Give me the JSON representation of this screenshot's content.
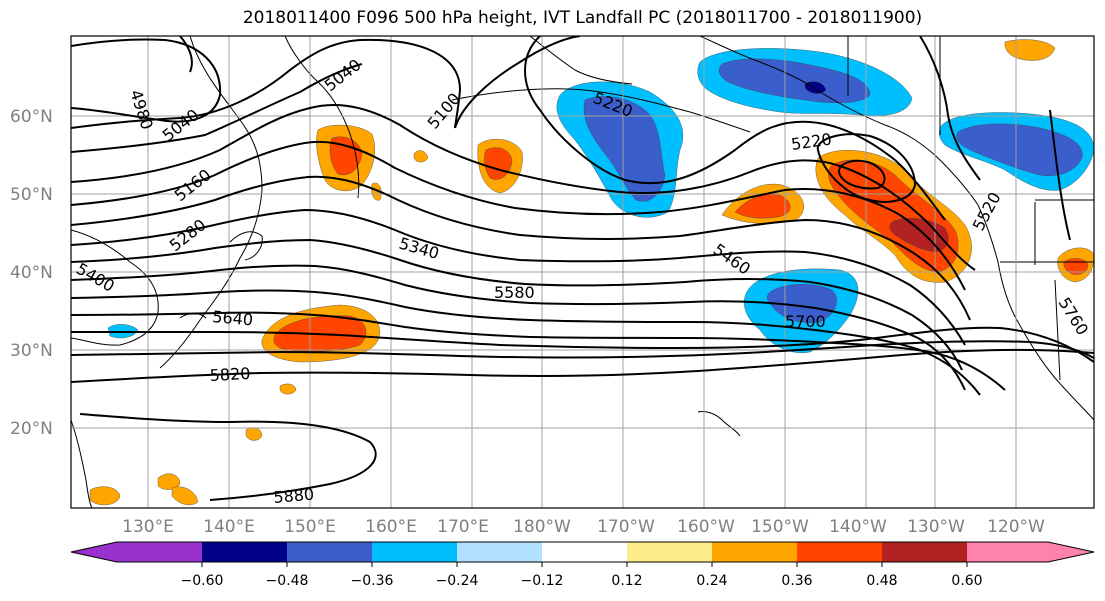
{
  "title": "2018011400 F096 500 hPa height, IVT Landfall PC (2018011700 - 2018011900)",
  "latitude_labels": [
    "60°N",
    "50°N",
    "40°N",
    "30°N",
    "20°N"
  ],
  "longitude_labels": [
    "130°E",
    "140°E",
    "150°E",
    "160°E",
    "170°E",
    "180°W",
    "170°W",
    "160°W",
    "150°W",
    "140°W",
    "130°W",
    "120°W"
  ],
  "contour_labels": [
    "4980",
    "5040",
    "5040",
    "5100",
    "5160",
    "5220",
    "5220",
    "5280",
    "5340",
    "5400",
    "5460",
    "5520",
    "5580",
    "5640",
    "5700",
    "5760",
    "5820",
    "5880"
  ],
  "colorbar": {
    "ticks": [
      "−0.60",
      "−0.48",
      "−0.36",
      "−0.24",
      "−0.12",
      "0.12",
      "0.24",
      "0.36",
      "0.48",
      "0.60"
    ],
    "colors": [
      "#9932cc",
      "#00008b",
      "#3a5fcd",
      "#00bfff",
      "#b0e2ff",
      "#ffffff",
      "#ffec8b",
      "#ffa500",
      "#ff4500",
      "#b22222",
      "#ff82ab"
    ]
  },
  "shading_colors": {
    "neg_light": "#00bfff",
    "neg_mid": "#3a5fcd",
    "neg_dark": "#00008b",
    "pos_light": "#ffec8b",
    "pos_mid": "#ffa500",
    "pos_strong": "#ff4500",
    "pos_dark": "#b22222"
  }
}
